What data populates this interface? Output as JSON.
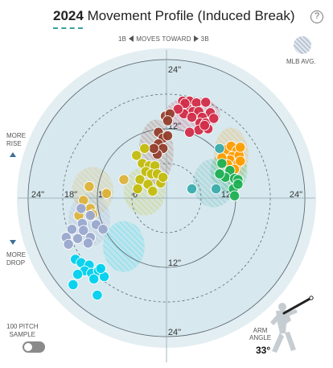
{
  "header": {
    "year": "2024",
    "title": "Movement Profile (Induced Break)",
    "help_label": "?"
  },
  "direction": {
    "left_label": "1B",
    "middle_label": "MOVES TOWARD",
    "right_label": "3B"
  },
  "legend": {
    "label": "MLB AVG."
  },
  "side_labels": {
    "rise": "MORE\nRISE",
    "drop": "MORE\nDROP"
  },
  "sample": {
    "label": "100 PITCH\nSAMPLE",
    "enabled": false
  },
  "arm_angle": {
    "label": "ARM\nANGLE",
    "value": "33°"
  },
  "colors": {
    "outer_bg": "#e3eef2",
    "inner_bg": "#d7e8ee",
    "four_seam": "#d22d49",
    "slider": "#c3bd0e",
    "curveball": "#00d1ed",
    "cutter": "#933f2c",
    "changeup": "#1db053",
    "sinker": "#fe9d00",
    "splitter": "#3bacac",
    "sweeper": "#ddb33a",
    "knuckle_curve": "#9aa8ce"
  },
  "chart_data": {
    "type": "scatter",
    "x_label": "horizontal break (in)",
    "y_label": "induced vertical break (in)",
    "xlim": [
      -24,
      24
    ],
    "ylim": [
      -24,
      24
    ],
    "rings": [
      6,
      12,
      18,
      24
    ],
    "ring_labels": [
      "24\"",
      "18\"",
      "12\"",
      "6\"",
      "12\"",
      "24\"",
      "24\"",
      "12\"",
      "12\"",
      "24\""
    ],
    "series": [
      {
        "color": "#d22d49",
        "mlb_avg": {
          "x": 4.5,
          "y": 14.5,
          "rx": 4.8,
          "ry": 3.0
        },
        "points": [
          [
            2.8,
            16.8
          ],
          [
            4.0,
            16.8
          ],
          [
            5.2,
            16.5
          ],
          [
            3.6,
            15.6
          ],
          [
            4.6,
            15.0
          ],
          [
            3.0,
            14.6
          ],
          [
            5.6,
            15.0
          ],
          [
            6.8,
            16.6
          ],
          [
            7.6,
            14.8
          ],
          [
            6.2,
            14.0
          ],
          [
            5.8,
            13.0
          ],
          [
            4.4,
            14.0
          ],
          [
            6.8,
            13.0
          ],
          [
            8.2,
            13.8
          ],
          [
            7.2,
            12.0
          ],
          [
            5.6,
            11.8
          ],
          [
            4.0,
            11.4
          ],
          [
            6.6,
            12.6
          ],
          [
            3.2,
            16.4
          ],
          [
            2.0,
            15.4
          ]
        ]
      },
      {
        "color": "#933f2c",
        "mlb_avg": {
          "x": -1.8,
          "y": 8.0,
          "rx": 3.0,
          "ry": 5.6
        },
        "points": [
          [
            -0.2,
            14.2
          ],
          [
            0.6,
            14.6
          ],
          [
            0.2,
            13.4
          ],
          [
            -1.4,
            11.4
          ],
          [
            -0.6,
            10.4
          ],
          [
            -1.4,
            9.4
          ],
          [
            -0.6,
            8.6
          ],
          [
            -1.6,
            7.6
          ],
          [
            -2.2,
            8.6
          ],
          [
            0.2,
            10.8
          ]
        ]
      },
      {
        "color": "#c3bd0e",
        "mlb_avg": {
          "x": -3.8,
          "y": 1.2,
          "rx": 3.6,
          "ry": 4.2
        },
        "points": [
          [
            -3.8,
            8.6
          ],
          [
            -5.2,
            7.4
          ],
          [
            -4.2,
            6.0
          ],
          [
            -3.0,
            5.6
          ],
          [
            -2.0,
            5.6
          ],
          [
            -3.6,
            4.6
          ],
          [
            -2.6,
            4.2
          ],
          [
            -1.6,
            4.2
          ],
          [
            -4.6,
            3.2
          ],
          [
            -3.2,
            2.4
          ],
          [
            -5.0,
            1.6
          ],
          [
            -1.0,
            2.6
          ],
          [
            -0.6,
            3.6
          ],
          [
            -2.4,
            1.2
          ]
        ]
      },
      {
        "color": "#fe9d00",
        "mlb_avg": {
          "x": 11.2,
          "y": 7.4,
          "rx": 3.0,
          "ry": 4.8
        },
        "points": [
          [
            10.4,
            8.4
          ],
          [
            11.2,
            9.0
          ],
          [
            12.2,
            8.2
          ],
          [
            11.4,
            7.2
          ],
          [
            12.6,
            7.4
          ],
          [
            11.0,
            6.6
          ],
          [
            12.4,
            6.0
          ],
          [
            10.6,
            5.8
          ],
          [
            11.8,
            5.0
          ],
          [
            12.8,
            6.4
          ],
          [
            9.6,
            7.0
          ],
          [
            12.8,
            8.8
          ]
        ]
      },
      {
        "color": "#1db053",
        "mlb_avg": {
          "x": 10.8,
          "y": 4.6,
          "rx": 3.2,
          "ry": 3.6
        },
        "points": [
          [
            9.6,
            6.0
          ],
          [
            11.0,
            4.8
          ],
          [
            10.2,
            3.6
          ],
          [
            11.8,
            3.4
          ],
          [
            12.4,
            3.2
          ],
          [
            11.6,
            1.6
          ],
          [
            9.2,
            4.2
          ],
          [
            12.4,
            2.4
          ],
          [
            11.8,
            0.4
          ]
        ]
      },
      {
        "color": "#3bacac",
        "mlb_avg": {
          "x": 8.2,
          "y": 2.6,
          "rx": 3.6,
          "ry": 4.2
        },
        "points": [
          [
            9.2,
            8.6
          ],
          [
            4.4,
            1.6
          ],
          [
            8.6,
            1.6
          ]
        ]
      },
      {
        "color": "#ddb33a",
        "mlb_avg": {
          "x": -12.8,
          "y": 1.2,
          "rx": 3.6,
          "ry": 4.2
        },
        "points": [
          [
            -7.4,
            3.2
          ],
          [
            -10.4,
            0.8
          ],
          [
            -13.4,
            2.0
          ],
          [
            -14.4,
            -0.4
          ],
          [
            -13.2,
            -1.8
          ],
          [
            -15.2,
            -3.0
          ],
          [
            -12.8,
            -2.8
          ]
        ]
      },
      {
        "color": "#9aa8ce",
        "mlb_avg": {
          "x": -13.4,
          "y": -3.8,
          "rx": 3.6,
          "ry": 4.6
        },
        "points": [
          [
            -14.8,
            -1.8
          ],
          [
            -13.2,
            -3.0
          ],
          [
            -14.6,
            -4.4
          ],
          [
            -12.2,
            -4.6
          ],
          [
            -16.4,
            -5.4
          ],
          [
            -11.0,
            -5.4
          ],
          [
            -14.4,
            -5.6
          ],
          [
            -17.4,
            -6.8
          ],
          [
            -15.4,
            -7.0
          ],
          [
            -13.2,
            -6.8
          ],
          [
            -13.6,
            -7.8
          ],
          [
            -17.0,
            -8.0
          ]
        ]
      },
      {
        "color": "#00d1ed",
        "mlb_avg": {
          "x": -7.4,
          "y": -8.4,
          "rx": 3.6,
          "ry": 4.4
        },
        "points": [
          [
            -15.8,
            -10.6
          ],
          [
            -14.8,
            -11.2
          ],
          [
            -13.4,
            -11.6
          ],
          [
            -14.2,
            -12.6
          ],
          [
            -13.0,
            -13.0
          ],
          [
            -11.8,
            -12.6
          ],
          [
            -15.4,
            -13.2
          ],
          [
            -12.6,
            -14.0
          ],
          [
            -10.8,
            -13.6
          ],
          [
            -11.4,
            -12.2
          ],
          [
            -16.2,
            -15.0
          ],
          [
            -12.0,
            -16.8
          ]
        ]
      }
    ]
  }
}
